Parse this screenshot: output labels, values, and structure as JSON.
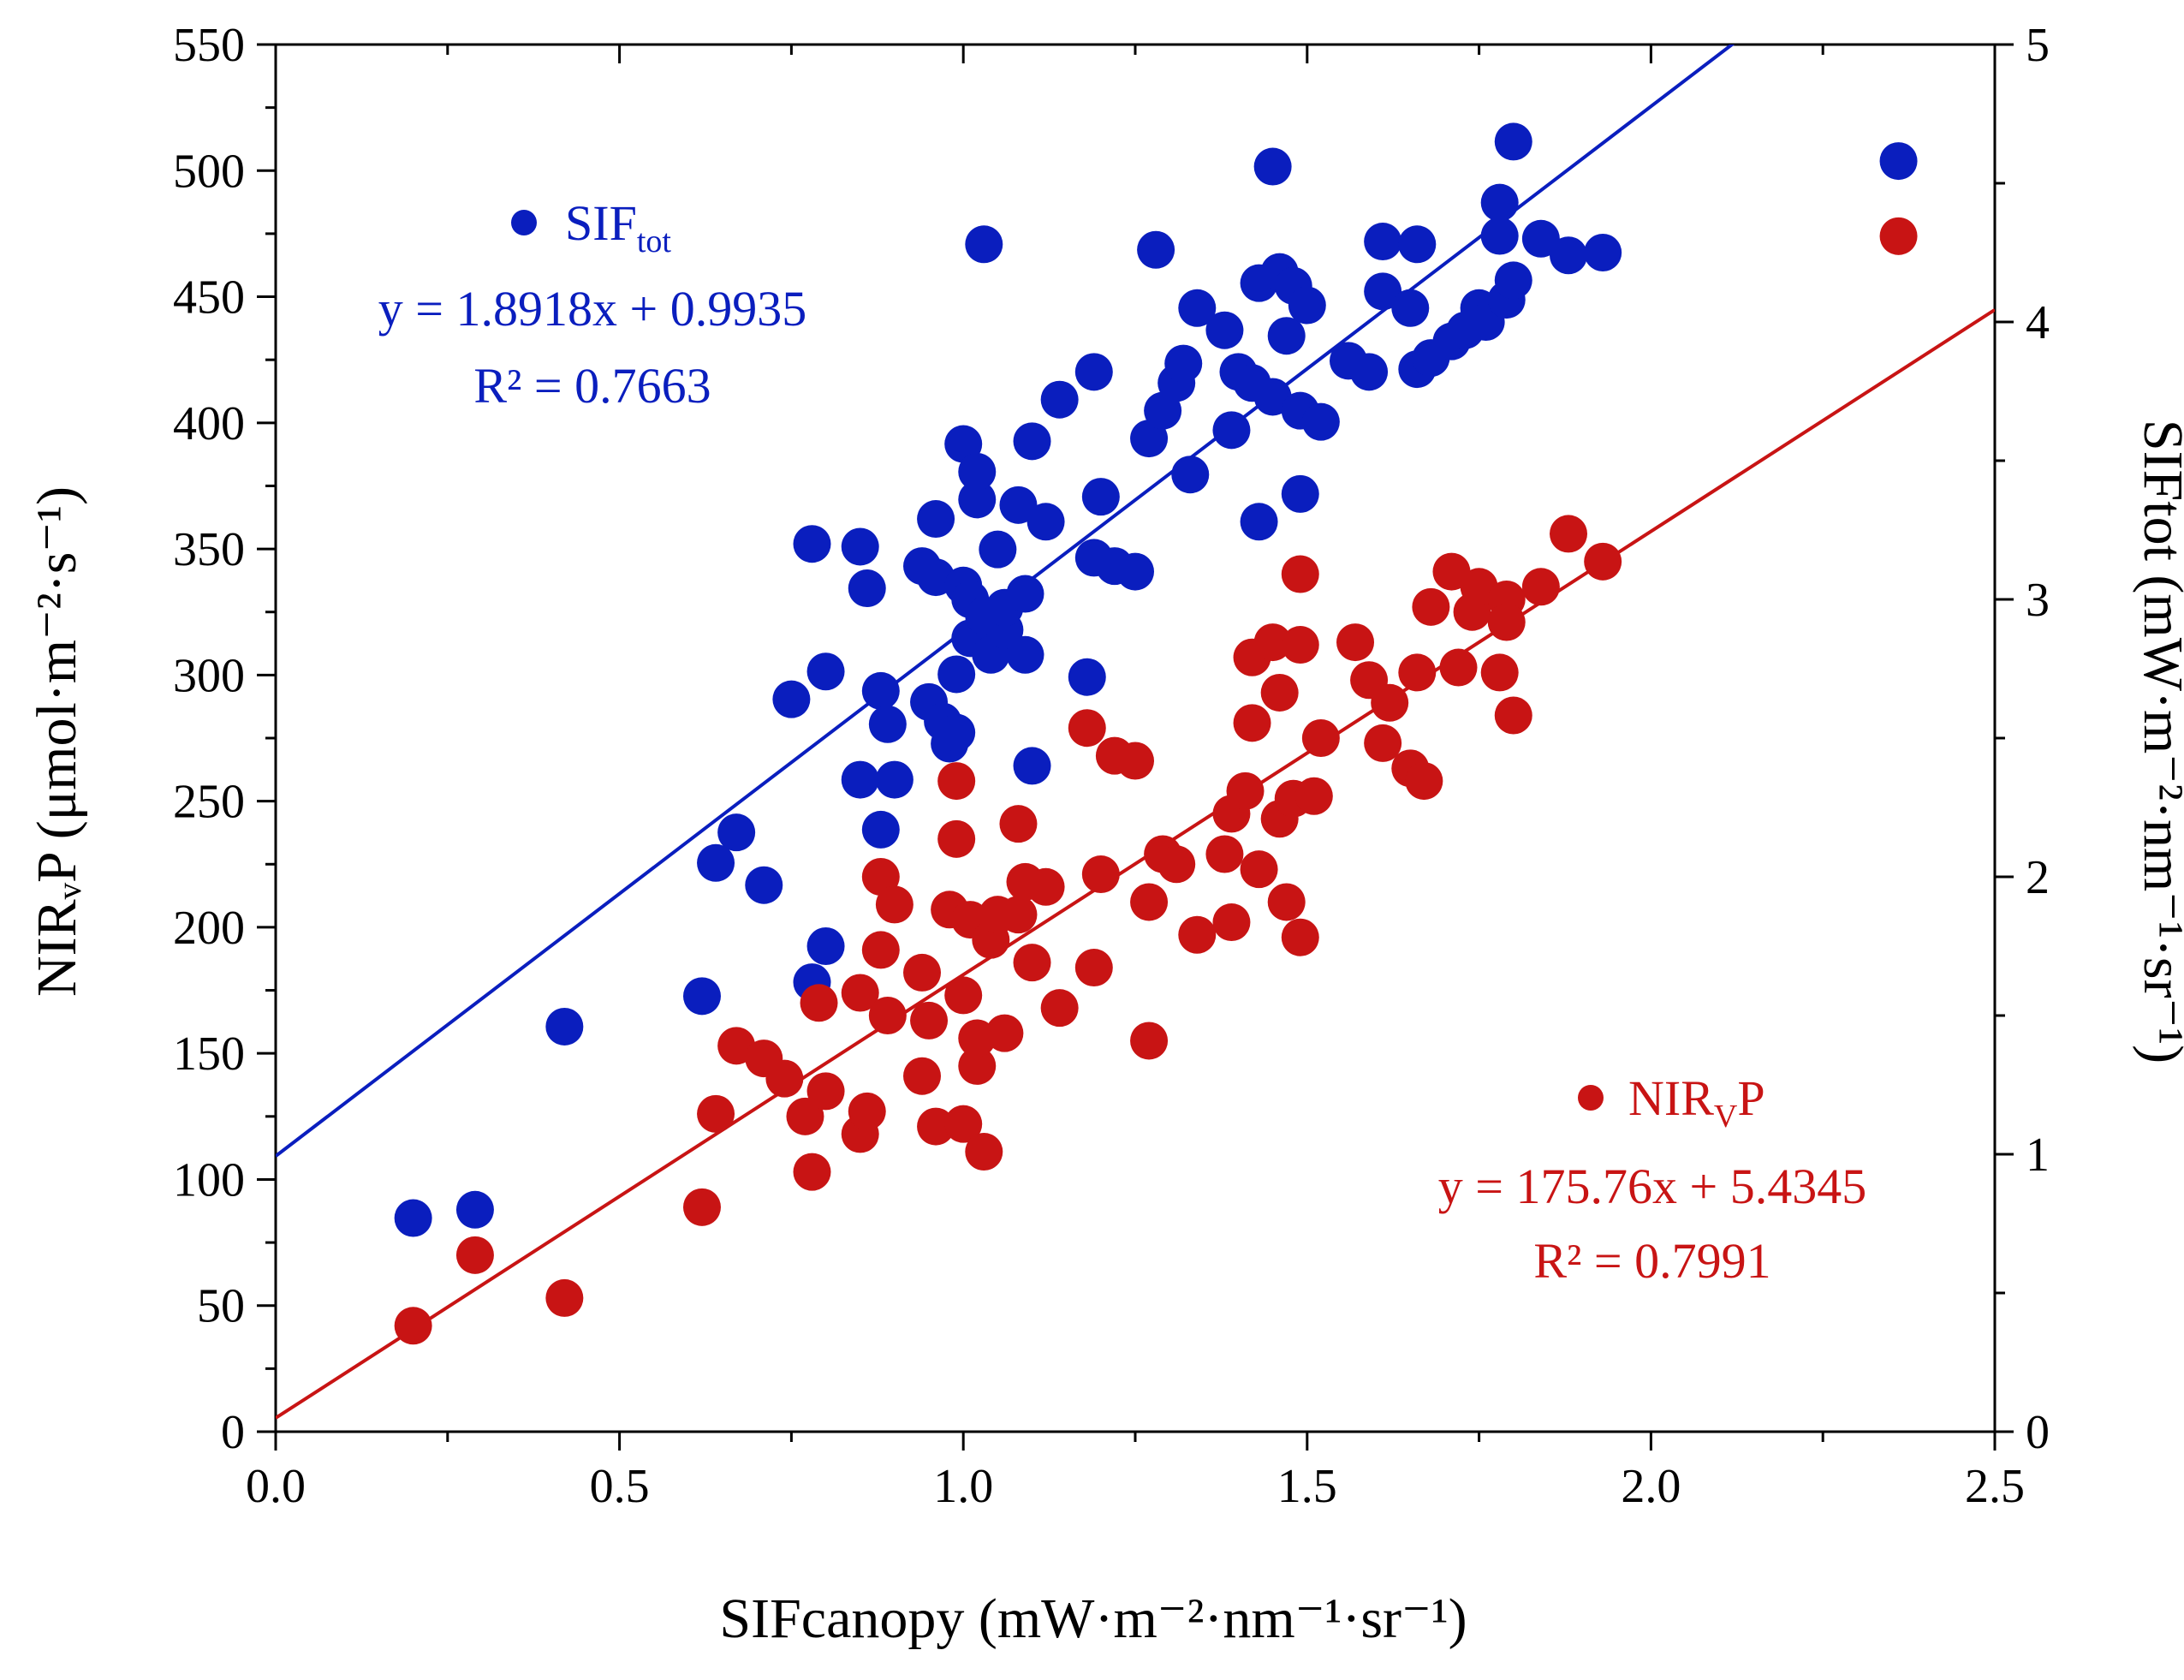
{
  "chart_data": {
    "type": "scatter",
    "xlabel": "SIFcanopy (mW·m⁻²·nm⁻¹·sr⁻¹)",
    "ylabel_left": "NIRᵥP (μmol·m⁻²·s⁻¹)",
    "ylabel_right": "SIFtot (mW·m⁻²·nm⁻¹·sr⁻¹)",
    "xlim": [
      0,
      2.5
    ],
    "ylim_left": [
      0,
      550
    ],
    "ylim_right": [
      0,
      5
    ],
    "x_ticks": [
      "0.0",
      "0.5",
      "1.0",
      "1.5",
      "2.0",
      "2.5"
    ],
    "y_left_ticks": [
      "0",
      "50",
      "100",
      "150",
      "200",
      "250",
      "300",
      "350",
      "400",
      "450",
      "500",
      "550"
    ],
    "y_right_ticks": [
      "0",
      "1",
      "2",
      "3",
      "4",
      "5"
    ],
    "grid": false,
    "series": [
      {
        "name": "SIFtot",
        "legend_main": "SIF",
        "legend_sub": "tot",
        "axis": "right",
        "color": "#0A1EBE",
        "equation": "y = 1.8918x + 0.9935",
        "r2": "R² = 0.7663",
        "fit": {
          "slope": 1.8918,
          "intercept": 0.9935
        },
        "points": [
          [
            0.2,
            0.77
          ],
          [
            0.29,
            0.8
          ],
          [
            0.42,
            1.46
          ],
          [
            0.62,
            1.57
          ],
          [
            0.64,
            2.05
          ],
          [
            0.67,
            2.16
          ],
          [
            0.71,
            1.97
          ],
          [
            0.75,
            2.64
          ],
          [
            0.78,
            1.62
          ],
          [
            0.78,
            3.2
          ],
          [
            0.8,
            1.75
          ],
          [
            0.8,
            2.74
          ],
          [
            0.85,
            3.19
          ],
          [
            0.85,
            2.35
          ],
          [
            0.86,
            3.04
          ],
          [
            0.88,
            2.17
          ],
          [
            0.88,
            2.67
          ],
          [
            0.89,
            2.55
          ],
          [
            0.9,
            2.35
          ],
          [
            0.94,
            3.12
          ],
          [
            0.95,
            2.63
          ],
          [
            0.96,
            3.29
          ],
          [
            0.96,
            3.08
          ],
          [
            0.97,
            2.56
          ],
          [
            0.98,
            2.48
          ],
          [
            0.99,
            2.52
          ],
          [
            0.99,
            2.73
          ],
          [
            1.0,
            3.05
          ],
          [
            1.0,
            3.56
          ],
          [
            1.01,
            3.0
          ],
          [
            1.01,
            2.86
          ],
          [
            1.02,
            3.36
          ],
          [
            1.02,
            3.46
          ],
          [
            1.03,
            4.28
          ],
          [
            1.03,
            2.94
          ],
          [
            1.04,
            2.8
          ],
          [
            1.05,
            3.18
          ],
          [
            1.06,
            2.89
          ],
          [
            1.06,
            2.97
          ],
          [
            1.08,
            3.34
          ],
          [
            1.09,
            2.8
          ],
          [
            1.09,
            3.02
          ],
          [
            1.1,
            3.57
          ],
          [
            1.1,
            2.4
          ],
          [
            1.12,
            3.28
          ],
          [
            1.14,
            3.72
          ],
          [
            1.18,
            2.72
          ],
          [
            1.19,
            3.15
          ],
          [
            1.19,
            3.82
          ],
          [
            1.2,
            3.37
          ],
          [
            1.22,
            3.12
          ],
          [
            1.25,
            3.1
          ],
          [
            1.27,
            3.58
          ],
          [
            1.28,
            4.26
          ],
          [
            1.29,
            3.68
          ],
          [
            1.31,
            3.78
          ],
          [
            1.32,
            3.85
          ],
          [
            1.33,
            3.45
          ],
          [
            1.34,
            4.05
          ],
          [
            1.38,
            3.97
          ],
          [
            1.39,
            3.61
          ],
          [
            1.4,
            3.82
          ],
          [
            1.42,
            3.78
          ],
          [
            1.43,
            3.28
          ],
          [
            1.43,
            4.14
          ],
          [
            1.45,
            4.56
          ],
          [
            1.45,
            3.73
          ],
          [
            1.46,
            4.18
          ],
          [
            1.47,
            3.95
          ],
          [
            1.48,
            4.13
          ],
          [
            1.49,
            3.38
          ],
          [
            1.49,
            3.68
          ],
          [
            1.5,
            4.06
          ],
          [
            1.52,
            3.64
          ],
          [
            1.56,
            3.86
          ],
          [
            1.59,
            3.82
          ],
          [
            1.61,
            4.29
          ],
          [
            1.61,
            4.11
          ],
          [
            1.65,
            4.05
          ],
          [
            1.66,
            4.28
          ],
          [
            1.66,
            3.83
          ],
          [
            1.68,
            3.87
          ],
          [
            1.71,
            3.93
          ],
          [
            1.73,
            3.97
          ],
          [
            1.75,
            4.05
          ],
          [
            1.76,
            4.0
          ],
          [
            1.78,
            4.43
          ],
          [
            1.78,
            4.31
          ],
          [
            1.79,
            4.08
          ],
          [
            1.8,
            4.15
          ],
          [
            1.8,
            4.65
          ],
          [
            1.84,
            4.3
          ],
          [
            1.88,
            4.24
          ],
          [
            1.93,
            4.25
          ],
          [
            2.36,
            4.58
          ]
        ]
      },
      {
        "name": "NIRvP",
        "legend_main": "NIR",
        "legend_sub": "V",
        "legend_tail": "P",
        "axis": "left",
        "color": "#C81414",
        "equation": "y = 175.76x + 5.4345",
        "r2": "R² = 0.7991",
        "fit": {
          "slope": 175.76,
          "intercept": 5.4345
        },
        "points": [
          [
            0.2,
            42
          ],
          [
            0.29,
            70
          ],
          [
            0.42,
            53
          ],
          [
            0.62,
            89
          ],
          [
            0.64,
            126
          ],
          [
            0.67,
            153
          ],
          [
            0.71,
            148
          ],
          [
            0.74,
            140
          ],
          [
            0.77,
            125
          ],
          [
            0.78,
            103
          ],
          [
            0.79,
            170
          ],
          [
            0.8,
            135
          ],
          [
            0.85,
            174
          ],
          [
            0.85,
            118
          ],
          [
            0.86,
            127
          ],
          [
            0.88,
            220
          ],
          [
            0.88,
            191
          ],
          [
            0.89,
            165
          ],
          [
            0.9,
            209
          ],
          [
            0.94,
            141
          ],
          [
            0.94,
            182
          ],
          [
            0.95,
            163
          ],
          [
            0.96,
            121
          ],
          [
            0.98,
            207
          ],
          [
            0.99,
            258
          ],
          [
            0.99,
            235
          ],
          [
            1.0,
            173
          ],
          [
            1.0,
            122
          ],
          [
            1.01,
            203
          ],
          [
            1.02,
            145
          ],
          [
            1.02,
            156
          ],
          [
            1.03,
            111
          ],
          [
            1.04,
            195
          ],
          [
            1.05,
            205
          ],
          [
            1.06,
            158
          ],
          [
            1.08,
            241
          ],
          [
            1.08,
            205
          ],
          [
            1.09,
            218
          ],
          [
            1.1,
            186
          ],
          [
            1.12,
            216
          ],
          [
            1.14,
            168
          ],
          [
            1.18,
            279
          ],
          [
            1.19,
            184
          ],
          [
            1.2,
            221
          ],
          [
            1.22,
            268
          ],
          [
            1.25,
            266
          ],
          [
            1.27,
            155
          ],
          [
            1.27,
            210
          ],
          [
            1.29,
            229
          ],
          [
            1.31,
            225
          ],
          [
            1.34,
            197
          ],
          [
            1.38,
            229
          ],
          [
            1.39,
            245
          ],
          [
            1.39,
            202
          ],
          [
            1.41,
            254
          ],
          [
            1.42,
            307
          ],
          [
            1.42,
            281
          ],
          [
            1.43,
            223
          ],
          [
            1.45,
            313
          ],
          [
            1.46,
            243
          ],
          [
            1.46,
            293
          ],
          [
            1.47,
            210
          ],
          [
            1.48,
            251
          ],
          [
            1.49,
            196
          ],
          [
            1.49,
            312
          ],
          [
            1.49,
            340
          ],
          [
            1.51,
            252
          ],
          [
            1.52,
            275
          ],
          [
            1.57,
            313
          ],
          [
            1.59,
            298
          ],
          [
            1.61,
            273
          ],
          [
            1.62,
            289
          ],
          [
            1.65,
            263
          ],
          [
            1.66,
            301
          ],
          [
            1.67,
            258
          ],
          [
            1.68,
            327
          ],
          [
            1.71,
            341
          ],
          [
            1.72,
            303
          ],
          [
            1.74,
            325
          ],
          [
            1.75,
            335
          ],
          [
            1.78,
            301
          ],
          [
            1.79,
            330
          ],
          [
            1.79,
            321
          ],
          [
            1.8,
            284
          ],
          [
            1.84,
            335
          ],
          [
            1.88,
            356
          ],
          [
            1.93,
            345
          ],
          [
            2.36,
            474
          ]
        ]
      }
    ]
  }
}
